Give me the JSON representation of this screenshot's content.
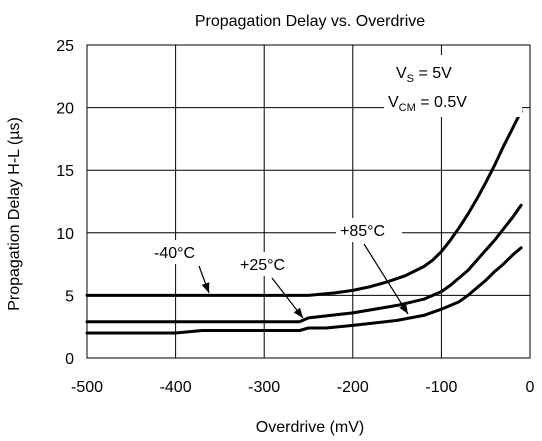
{
  "chart_data": {
    "type": "line",
    "title": "Propagation Delay vs. Overdrive",
    "xlabel": "Overdrive (mV)",
    "ylabel": "Propagation Delay H-L (µs)",
    "xlim": [
      -500,
      0
    ],
    "ylim": [
      0,
      25
    ],
    "xticks": [
      -500,
      -400,
      -300,
      -200,
      -100,
      0
    ],
    "yticks": [
      0,
      5,
      10,
      15,
      20,
      25
    ],
    "grid": true,
    "series": [
      {
        "name": "-40°C",
        "x": [
          -500,
          -400,
          -300,
          -250,
          -220,
          -200,
          -180,
          -160,
          -140,
          -120,
          -110,
          -100,
          -90,
          -80,
          -70,
          -60,
          -50,
          -40,
          -30,
          -20,
          -10
        ],
        "y": [
          5.0,
          5.0,
          5.0,
          5.0,
          5.2,
          5.4,
          5.7,
          6.1,
          6.6,
          7.3,
          7.8,
          8.5,
          9.4,
          10.4,
          11.5,
          12.7,
          14.0,
          15.4,
          16.9,
          18.3,
          19.7
        ]
      },
      {
        "name": "+25°C",
        "x": [
          -500,
          -400,
          -300,
          -260,
          -250,
          -200,
          -150,
          -120,
          -100,
          -90,
          -80,
          -70,
          -60,
          -50,
          -40,
          -30,
          -20,
          -10
        ],
        "y": [
          2.9,
          2.9,
          2.9,
          2.9,
          3.2,
          3.6,
          4.2,
          4.7,
          5.3,
          5.8,
          6.4,
          7.0,
          7.8,
          8.6,
          9.4,
          10.3,
          11.2,
          12.2
        ]
      },
      {
        "name": "+85°C",
        "x": [
          -500,
          -400,
          -370,
          -300,
          -260,
          -250,
          -230,
          -200,
          -150,
          -120,
          -100,
          -80,
          -70,
          -60,
          -50,
          -40,
          -30,
          -20,
          -10
        ],
        "y": [
          2.0,
          2.0,
          2.2,
          2.2,
          2.2,
          2.4,
          2.4,
          2.6,
          3.0,
          3.4,
          3.9,
          4.5,
          5.0,
          5.6,
          6.2,
          6.9,
          7.5,
          8.2,
          8.8
        ]
      }
    ],
    "annotations": {
      "vs_main": "V",
      "vs_sub": "S",
      "vs_value": " = 5V",
      "vcm_main": "V",
      "vcm_sub": "CM",
      "vcm_value": " = 0.5V"
    },
    "line_color": "#000000"
  }
}
